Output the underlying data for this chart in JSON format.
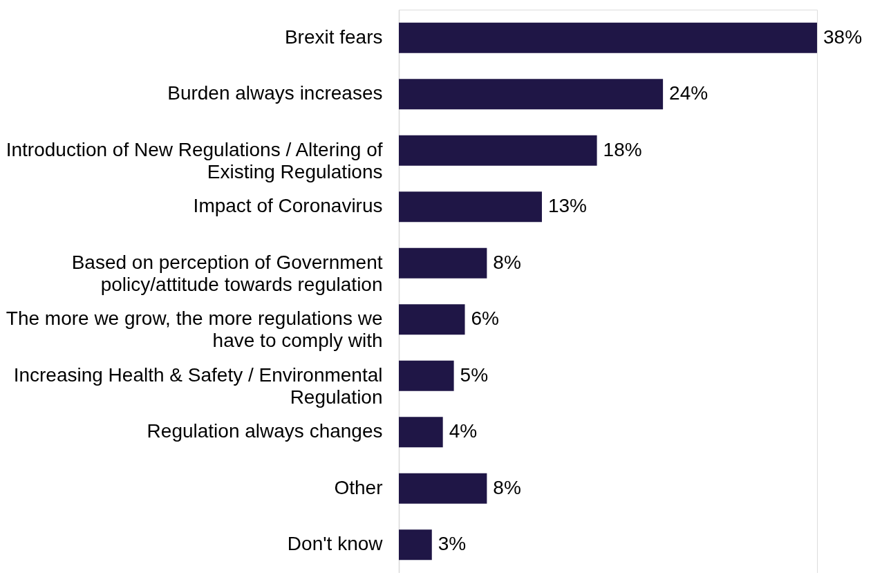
{
  "chart_data": {
    "type": "bar",
    "orientation": "horizontal",
    "categories": [
      "Brexit fears",
      "Burden always increases",
      "Introduction of New Regulations / Altering of Existing Regulations",
      "Impact of Coronavirus",
      "Based on perception of Government policy/attitude towards regulation",
      "The more we grow, the more regulations we have to comply with",
      "Increasing Health & Safety / Environmental Regulation",
      "Regulation always changes",
      "Other",
      "Don't know"
    ],
    "values": [
      38,
      24,
      18,
      13,
      8,
      6,
      5,
      4,
      8,
      3
    ],
    "value_labels": [
      "38%",
      "24%",
      "18%",
      "13%",
      "8%",
      "6%",
      "5%",
      "4%",
      "8%",
      "3%"
    ],
    "color": "#1f1646",
    "grid": false,
    "legend": false,
    "tick_labels": "y"
  }
}
